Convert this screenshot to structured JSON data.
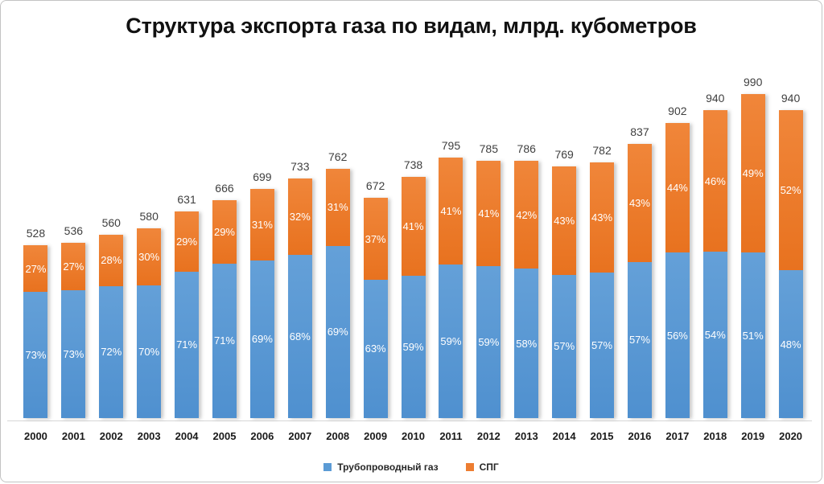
{
  "chart_data": {
    "type": "bar",
    "stacked": true,
    "title": "Структура экспорта газа по видам, млрд. кубометров",
    "categories": [
      "2000",
      "2001",
      "2002",
      "2003",
      "2004",
      "2005",
      "2006",
      "2007",
      "2008",
      "2009",
      "2010",
      "2011",
      "2012",
      "2013",
      "2014",
      "2015",
      "2016",
      "2017",
      "2018",
      "2019",
      "2020"
    ],
    "totals": [
      528,
      536,
      560,
      580,
      631,
      666,
      699,
      733,
      762,
      672,
      738,
      795,
      785,
      786,
      769,
      782,
      837,
      902,
      940,
      990,
      940
    ],
    "series": [
      {
        "name": "Трубопроводный газ",
        "color": "#5B9BD5",
        "percent": [
          73,
          73,
          72,
          70,
          71,
          71,
          69,
          68,
          69,
          63,
          59,
          59,
          59,
          58,
          57,
          57,
          57,
          56,
          54,
          51,
          48
        ],
        "labels": [
          "73%",
          "73%",
          "72%",
          "70%",
          "71%",
          "71%",
          "69%",
          "68%",
          "69%",
          "63%",
          "59%",
          "59%",
          "59%",
          "58%",
          "57%",
          "57%",
          "57%",
          "56%",
          "54%",
          "51%",
          "48%"
        ]
      },
      {
        "name": "СПГ",
        "color": "#ED7D31",
        "percent": [
          27,
          27,
          28,
          30,
          29,
          29,
          31,
          32,
          31,
          37,
          41,
          41,
          41,
          42,
          43,
          43,
          43,
          44,
          46,
          49,
          52
        ],
        "labels": [
          "27%",
          "27%",
          "28%",
          "30%",
          "29%",
          "29%",
          "31%",
          "32%",
          "31%",
          "37%",
          "41%",
          "41%",
          "41%",
          "42%",
          "43%",
          "43%",
          "43%",
          "44%",
          "46%",
          "49%",
          "52%"
        ]
      }
    ],
    "ylim": [
      0,
      990
    ],
    "grid": false,
    "legend_position": "bottom",
    "axis_color": "#D6D6D6",
    "label_color_totals": "#3F3F3F",
    "label_color_percent": "#FFFFFF"
  }
}
